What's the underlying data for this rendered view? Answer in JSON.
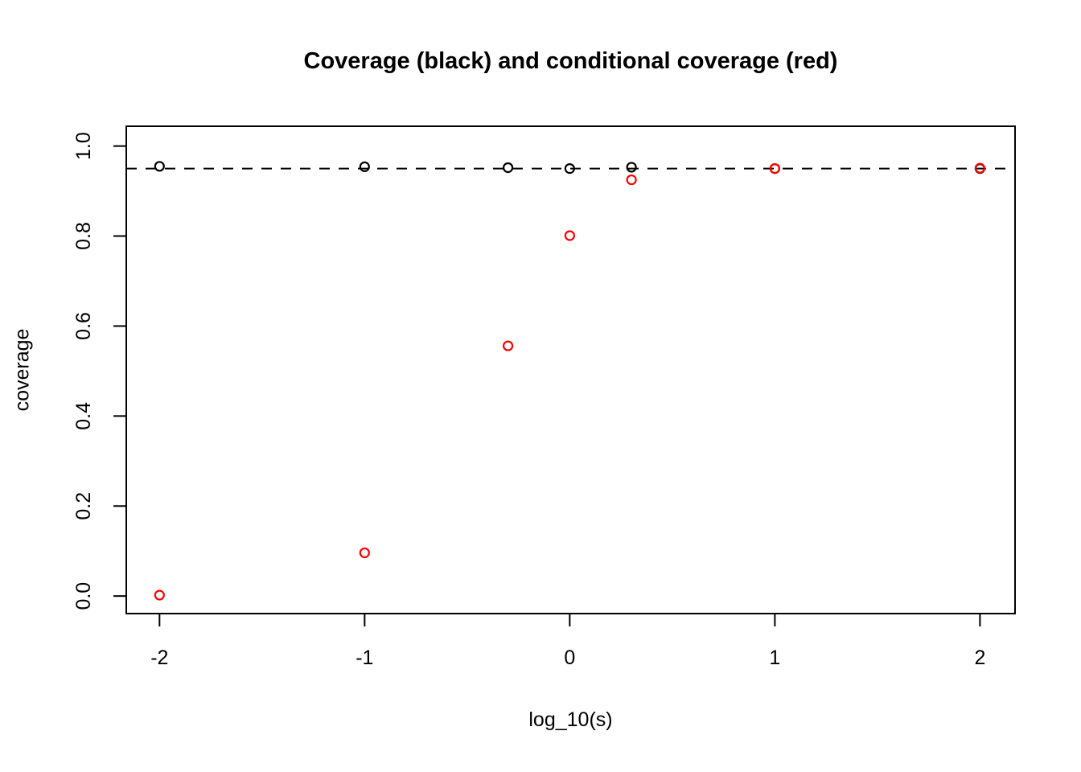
{
  "chart_data": {
    "type": "scatter",
    "title": "Coverage (black) and conditional coverage (red)",
    "xlabel": "log_10(s)",
    "ylabel": "coverage",
    "xlim": [
      -2.162,
      2.171
    ],
    "ylim": [
      -0.039,
      1.044
    ],
    "grid": false,
    "legend": "none",
    "background_color": "#ffffff",
    "axis_color": "#000000",
    "x_ticks": {
      "values": [
        -2,
        -1,
        0,
        1,
        2
      ],
      "labels": [
        "-2",
        "-1",
        "0",
        "1",
        "2"
      ]
    },
    "y_ticks": {
      "values": [
        0.0,
        0.2,
        0.4,
        0.6,
        0.8,
        1.0
      ],
      "labels": [
        "0.0",
        "0.2",
        "0.4",
        "0.6",
        "0.8",
        "1.0"
      ]
    },
    "reference_line": {
      "y": 0.95,
      "style": "dashed",
      "color": "#000000"
    },
    "marker": "open-circle",
    "series": [
      {
        "name": "coverage",
        "color": "#000000",
        "x": [
          -2,
          -1,
          -0.301,
          0,
          0.301,
          1,
          2
        ],
        "y": [
          0.955,
          0.954,
          0.952,
          0.95,
          0.953,
          0.95,
          0.95
        ]
      },
      {
        "name": "conditional coverage",
        "color": "#ff0000",
        "x": [
          -2,
          -1,
          -0.301,
          0,
          0.301,
          1,
          2
        ],
        "y": [
          0.002,
          0.096,
          0.556,
          0.801,
          0.925,
          0.95,
          0.951
        ]
      }
    ]
  }
}
